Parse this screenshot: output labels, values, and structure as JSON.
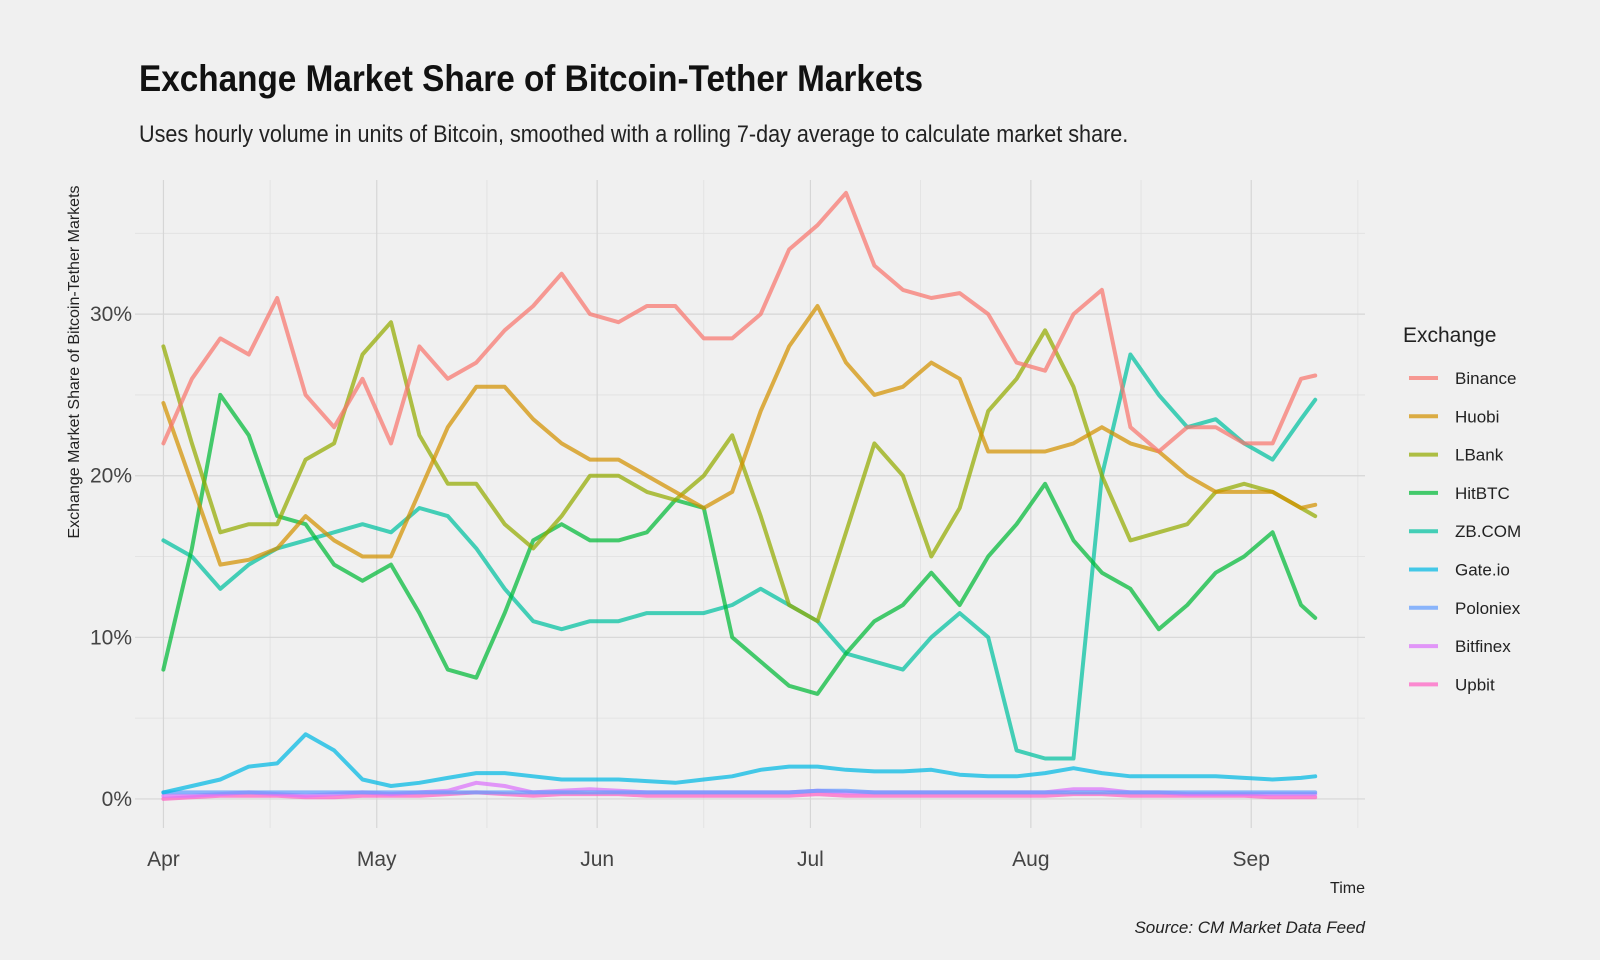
{
  "chart_data": {
    "type": "line",
    "title": "Exchange Market Share of Bitcoin-Tether Markets",
    "subtitle": "Uses hourly volume in units of Bitcoin, smoothed with a rolling 7-day average to calculate market share.",
    "xlabel": "Time",
    "ylabel": "Exchange Market Share of Bitcoin-Tether Markets",
    "caption": "Source: CM Market Data Feed",
    "legend_title": "Exchange",
    "legend_position": "right",
    "grid": true,
    "xlim": [
      "2019-03-28",
      "2019-09-17"
    ],
    "ylim": [
      -0.018,
      0.383
    ],
    "x_ticks": [
      {
        "date": "2019-04-01",
        "label": "Apr"
      },
      {
        "date": "2019-05-01",
        "label": "May"
      },
      {
        "date": "2019-06-01",
        "label": "Jun"
      },
      {
        "date": "2019-07-01",
        "label": "Jul"
      },
      {
        "date": "2019-08-01",
        "label": "Aug"
      },
      {
        "date": "2019-09-01",
        "label": "Sep"
      }
    ],
    "y_ticks": [
      {
        "value": 0,
        "label": "0%"
      },
      {
        "value": 0.1,
        "label": "10%"
      },
      {
        "value": 0.2,
        "label": "20%"
      },
      {
        "value": 0.3,
        "label": "30%"
      }
    ],
    "x": [
      "2019-04-01",
      "2019-04-05",
      "2019-04-09",
      "2019-04-13",
      "2019-04-17",
      "2019-04-21",
      "2019-04-25",
      "2019-04-29",
      "2019-05-03",
      "2019-05-07",
      "2019-05-11",
      "2019-05-15",
      "2019-05-19",
      "2019-05-23",
      "2019-05-27",
      "2019-05-31",
      "2019-06-04",
      "2019-06-08",
      "2019-06-12",
      "2019-06-16",
      "2019-06-20",
      "2019-06-24",
      "2019-06-28",
      "2019-07-02",
      "2019-07-06",
      "2019-07-10",
      "2019-07-14",
      "2019-07-18",
      "2019-07-22",
      "2019-07-26",
      "2019-07-30",
      "2019-08-03",
      "2019-08-07",
      "2019-08-11",
      "2019-08-15",
      "2019-08-19",
      "2019-08-23",
      "2019-08-27",
      "2019-08-31",
      "2019-09-04",
      "2019-09-08",
      "2019-09-10"
    ],
    "series": [
      {
        "name": "Binance",
        "color": "#F8766D",
        "values": [
          0.22,
          0.26,
          0.285,
          0.275,
          0.31,
          0.25,
          0.23,
          0.26,
          0.22,
          0.28,
          0.26,
          0.27,
          0.29,
          0.305,
          0.325,
          0.3,
          0.295,
          0.305,
          0.305,
          0.285,
          0.285,
          0.3,
          0.34,
          0.355,
          0.375,
          0.33,
          0.315,
          0.31,
          0.313,
          0.3,
          0.27,
          0.265,
          0.3,
          0.315,
          0.23,
          0.215,
          0.23,
          0.23,
          0.22,
          0.22,
          0.26,
          0.262
        ]
      },
      {
        "name": "Huobi",
        "color": "#D39200",
        "values": [
          0.245,
          0.195,
          0.145,
          0.148,
          0.155,
          0.175,
          0.16,
          0.15,
          0.15,
          0.19,
          0.23,
          0.255,
          0.255,
          0.235,
          0.22,
          0.21,
          0.21,
          0.2,
          0.19,
          0.18,
          0.19,
          0.24,
          0.28,
          0.305,
          0.27,
          0.25,
          0.255,
          0.27,
          0.26,
          0.215,
          0.215,
          0.215,
          0.22,
          0.23,
          0.22,
          0.215,
          0.2,
          0.19,
          0.19,
          0.19,
          0.18,
          0.182
        ]
      },
      {
        "name": "LBank",
        "color": "#93AA00",
        "values": [
          0.28,
          0.22,
          0.165,
          0.17,
          0.17,
          0.21,
          0.22,
          0.275,
          0.295,
          0.225,
          0.195,
          0.195,
          0.17,
          0.155,
          0.175,
          0.2,
          0.2,
          0.19,
          0.185,
          0.2,
          0.225,
          0.175,
          0.12,
          0.11,
          0.165,
          0.22,
          0.2,
          0.15,
          0.18,
          0.24,
          0.26,
          0.29,
          0.255,
          0.2,
          0.16,
          0.165,
          0.17,
          0.19,
          0.195,
          0.19,
          0.18,
          0.175
        ]
      },
      {
        "name": "HitBTC",
        "color": "#00BA38",
        "values": [
          0.08,
          0.155,
          0.25,
          0.225,
          0.175,
          0.17,
          0.145,
          0.135,
          0.145,
          0.115,
          0.08,
          0.075,
          0.115,
          0.16,
          0.17,
          0.16,
          0.16,
          0.165,
          0.185,
          0.18,
          0.1,
          0.085,
          0.07,
          0.065,
          0.09,
          0.11,
          0.12,
          0.14,
          0.12,
          0.15,
          0.17,
          0.195,
          0.16,
          0.14,
          0.13,
          0.105,
          0.12,
          0.14,
          0.15,
          0.165,
          0.12,
          0.112
        ]
      },
      {
        "name": "ZB.COM",
        "color": "#00C19F",
        "values": [
          0.16,
          0.15,
          0.13,
          0.145,
          0.155,
          0.16,
          0.165,
          0.17,
          0.165,
          0.18,
          0.175,
          0.155,
          0.13,
          0.11,
          0.105,
          0.11,
          0.11,
          0.115,
          0.115,
          0.115,
          0.12,
          0.13,
          0.12,
          0.11,
          0.09,
          0.085,
          0.08,
          0.1,
          0.115,
          0.1,
          0.03,
          0.025,
          0.025,
          0.2,
          0.275,
          0.25,
          0.23,
          0.235,
          0.22,
          0.21,
          0.235,
          0.247
        ]
      },
      {
        "name": "Gate.io",
        "color": "#00B9E3",
        "values": [
          0.004,
          0.008,
          0.012,
          0.02,
          0.022,
          0.04,
          0.03,
          0.012,
          0.008,
          0.01,
          0.013,
          0.016,
          0.016,
          0.014,
          0.012,
          0.012,
          0.012,
          0.011,
          0.01,
          0.012,
          0.014,
          0.018,
          0.02,
          0.02,
          0.018,
          0.017,
          0.017,
          0.018,
          0.015,
          0.014,
          0.014,
          0.016,
          0.019,
          0.016,
          0.014,
          0.014,
          0.014,
          0.014,
          0.013,
          0.012,
          0.013,
          0.014
        ]
      },
      {
        "name": "Poloniex",
        "color": "#619CFF",
        "values": [
          0.004,
          0.004,
          0.004,
          0.004,
          0.004,
          0.004,
          0.004,
          0.004,
          0.004,
          0.004,
          0.004,
          0.004,
          0.004,
          0.004,
          0.004,
          0.004,
          0.004,
          0.004,
          0.004,
          0.004,
          0.004,
          0.004,
          0.004,
          0.005,
          0.005,
          0.004,
          0.004,
          0.004,
          0.004,
          0.004,
          0.004,
          0.004,
          0.004,
          0.004,
          0.004,
          0.004,
          0.004,
          0.004,
          0.004,
          0.004,
          0.004,
          0.004
        ]
      },
      {
        "name": "Bitfinex",
        "color": "#DB72FB",
        "values": [
          0.002,
          0.002,
          0.003,
          0.004,
          0.003,
          0.002,
          0.003,
          0.004,
          0.003,
          0.004,
          0.005,
          0.01,
          0.008,
          0.004,
          0.005,
          0.006,
          0.005,
          0.004,
          0.004,
          0.004,
          0.004,
          0.004,
          0.004,
          0.005,
          0.004,
          0.004,
          0.004,
          0.004,
          0.004,
          0.004,
          0.004,
          0.004,
          0.006,
          0.006,
          0.004,
          0.004,
          0.003,
          0.003,
          0.003,
          0.003,
          0.003,
          0.003
        ]
      },
      {
        "name": "Upbit",
        "color": "#FF61C3",
        "values": [
          0.0,
          0.001,
          0.002,
          0.002,
          0.002,
          0.001,
          0.001,
          0.002,
          0.002,
          0.002,
          0.003,
          0.004,
          0.003,
          0.002,
          0.003,
          0.003,
          0.003,
          0.002,
          0.002,
          0.002,
          0.002,
          0.002,
          0.002,
          0.003,
          0.002,
          0.002,
          0.002,
          0.002,
          0.002,
          0.002,
          0.002,
          0.002,
          0.003,
          0.003,
          0.002,
          0.002,
          0.002,
          0.002,
          0.002,
          0.001,
          0.001,
          0.001
        ]
      }
    ]
  }
}
